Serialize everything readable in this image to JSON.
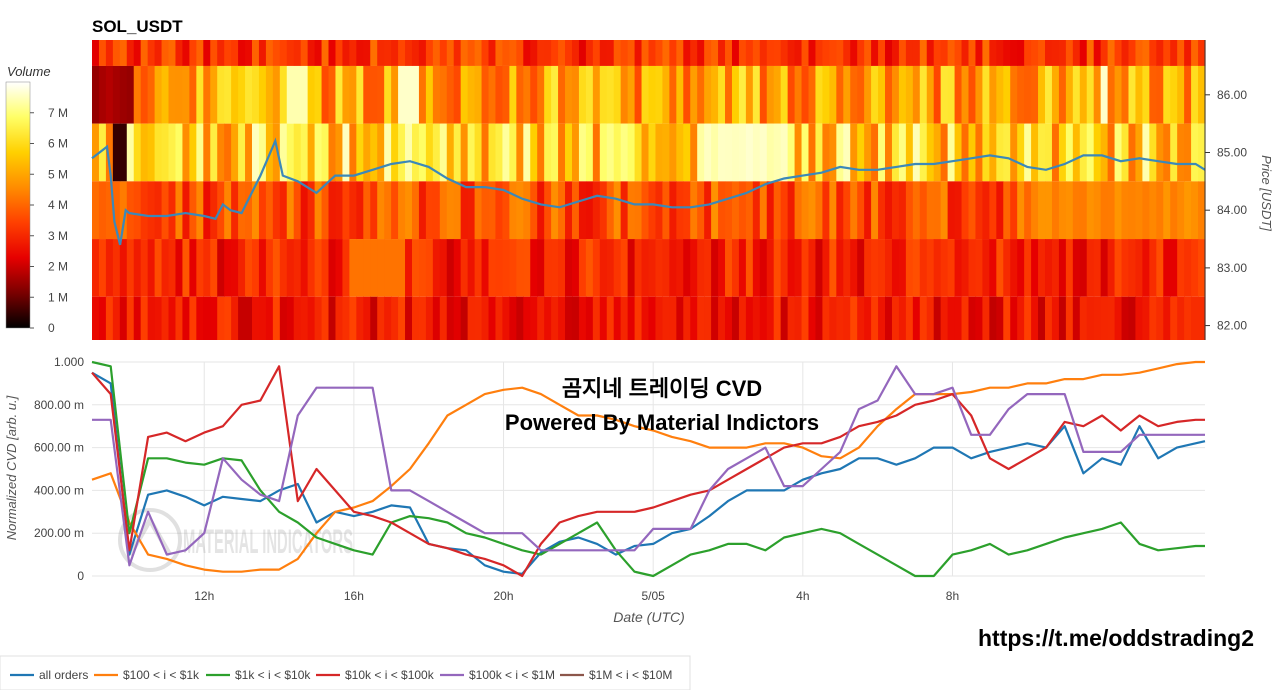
{
  "colors": {
    "heat_scale": [
      "#000000",
      "#7a0000",
      "#e60000",
      "#ff4000",
      "#ff8c00",
      "#ffd000",
      "#ffff66",
      "#ffffff"
    ],
    "price_line": "#3b88b9",
    "grid": "#e6e6e6"
  },
  "overlay": {
    "watermark": "MATERIAL INDICATORS",
    "cvd_title": "곰지네 트레이딩 CVD",
    "cvd_subtitle": "Powered By Material Indictors",
    "telegram_link": "https://t.me/oddstrading2"
  },
  "chart_data": [
    {
      "type": "heatmap",
      "title": "SOL_USDT",
      "colorbar": {
        "title": "Volume",
        "range": [
          0,
          8000000
        ],
        "ticks": [
          "0",
          "1 M",
          "2 M",
          "3 M",
          "4 M",
          "5 M",
          "6 M",
          "7 M"
        ],
        "tick_values": [
          0,
          1000000,
          2000000,
          3000000,
          4000000,
          5000000,
          6000000,
          7000000
        ]
      },
      "ylabel": "Price [USDT]",
      "ylim": [
        81.75,
        86.95
      ],
      "y_ticks": [
        "82.00",
        "83.00",
        "84.00",
        "85.00",
        "86.00"
      ],
      "y_tick_values": [
        82,
        83,
        84,
        85,
        86
      ],
      "price_levels": [
        86.7,
        86.0,
        85.0,
        84.0,
        83.0,
        82.0
      ],
      "level_volumes_typical": [
        3200000,
        5000000,
        5800000,
        3600000,
        2900000,
        2700000
      ],
      "price_series": {
        "name": "Price",
        "t": [
          0,
          0.2,
          0.4,
          0.5,
          0.6,
          0.75,
          0.9,
          1,
          1.5,
          2,
          2.5,
          3,
          3.3,
          3.5,
          3.7,
          4,
          4.5,
          4.9,
          5.1,
          5.5,
          6,
          6.5,
          7,
          7.5,
          8,
          8.5,
          9,
          9.5,
          10,
          10.5,
          11,
          11.5,
          12,
          12.5,
          13,
          13.5,
          14,
          14.5,
          15,
          15.5,
          16,
          16.5,
          17,
          17.5,
          18,
          18.5,
          19,
          19.5,
          20,
          20.5,
          21,
          21.5,
          22,
          22.5,
          23,
          23.5,
          24,
          24.5,
          25,
          25.5,
          26,
          26.5,
          27,
          27.5,
          28,
          28.5,
          29,
          29.5,
          29.75
        ],
        "price": [
          84.9,
          85.0,
          85.1,
          84.6,
          83.8,
          83.4,
          84.0,
          83.95,
          83.9,
          83.9,
          83.95,
          83.9,
          83.85,
          84.1,
          84.0,
          83.95,
          84.6,
          85.2,
          84.6,
          84.5,
          84.3,
          84.6,
          84.6,
          84.7,
          84.8,
          84.85,
          84.75,
          84.55,
          84.4,
          84.4,
          84.35,
          84.2,
          84.1,
          84.05,
          84.15,
          84.25,
          84.2,
          84.1,
          84.1,
          84.05,
          84.05,
          84.1,
          84.2,
          84.3,
          84.45,
          84.55,
          84.6,
          84.65,
          84.75,
          84.7,
          84.7,
          84.75,
          84.8,
          84.8,
          84.85,
          84.9,
          84.95,
          84.9,
          84.75,
          84.7,
          84.8,
          84.95,
          84.95,
          84.85,
          84.9,
          84.85,
          84.8,
          84.8,
          84.7
        ]
      }
    },
    {
      "type": "line",
      "xlabel": "Date (UTC)",
      "ylabel": "Normalized CVD [arb. u.]",
      "ylim": [
        0,
        1.0
      ],
      "y_ticks": [
        "0",
        "200.00 m",
        "400.00 m",
        "600.00 m",
        "800.00 m",
        "1.000"
      ],
      "y_tick_values": [
        0,
        0.2,
        0.4,
        0.6,
        0.8,
        1.0
      ],
      "x_range_hours": [
        0,
        29.75
      ],
      "x_ticks": [
        "12h",
        "16h",
        "20h",
        "5/05",
        "4h",
        "8h"
      ],
      "x_tick_hours": [
        3,
        7,
        11,
        15,
        19,
        23
      ],
      "grid": true,
      "legend_position": "bottom-left",
      "series": [
        {
          "name": "all orders",
          "color": "#1f77b4",
          "t": [
            0,
            0.5,
            1,
            1.5,
            2,
            2.5,
            3,
            3.5,
            4,
            4.5,
            5,
            5.5,
            6,
            6.5,
            7,
            7.5,
            8,
            8.5,
            9,
            9.5,
            10,
            10.5,
            11,
            11.5,
            12,
            12.5,
            13,
            13.5,
            14,
            14.5,
            15,
            15.5,
            16,
            16.5,
            17,
            17.5,
            18,
            18.5,
            19,
            19.5,
            20,
            20.5,
            21,
            21.5,
            22,
            22.5,
            23,
            23.5,
            24,
            24.5,
            25,
            25.5,
            26,
            26.5,
            27,
            27.5,
            28,
            28.5,
            29,
            29.5,
            29.75
          ],
          "values": [
            0.95,
            0.9,
            0.1,
            0.38,
            0.4,
            0.37,
            0.33,
            0.37,
            0.36,
            0.35,
            0.4,
            0.43,
            0.25,
            0.3,
            0.28,
            0.3,
            0.33,
            0.32,
            0.15,
            0.13,
            0.12,
            0.05,
            0.02,
            0.01,
            0.11,
            0.16,
            0.18,
            0.15,
            0.1,
            0.14,
            0.15,
            0.2,
            0.22,
            0.28,
            0.35,
            0.4,
            0.4,
            0.4,
            0.45,
            0.48,
            0.5,
            0.55,
            0.55,
            0.52,
            0.55,
            0.6,
            0.6,
            0.55,
            0.58,
            0.6,
            0.62,
            0.6,
            0.7,
            0.48,
            0.55,
            0.52,
            0.7,
            0.55,
            0.6,
            0.62,
            0.63
          ]
        },
        {
          "name": "$100 < i < $1k",
          "color": "#ff7f0e",
          "t": [
            0,
            0.5,
            1,
            1.5,
            2,
            2.5,
            3,
            3.5,
            4,
            4.5,
            5,
            5.5,
            6,
            6.5,
            7,
            7.5,
            8,
            8.5,
            9,
            9.5,
            10,
            10.5,
            11,
            11.5,
            12,
            12.5,
            13,
            13.5,
            14,
            14.5,
            15,
            15.5,
            16,
            16.5,
            17,
            17.5,
            18,
            18.5,
            19,
            19.5,
            20,
            20.5,
            21,
            21.5,
            22,
            22.5,
            23,
            23.5,
            24,
            24.5,
            25,
            25.5,
            26,
            26.5,
            27,
            27.5,
            28,
            28.5,
            29,
            29.5,
            29.75
          ],
          "values": [
            0.45,
            0.48,
            0.25,
            0.1,
            0.08,
            0.05,
            0.03,
            0.02,
            0.02,
            0.03,
            0.03,
            0.08,
            0.2,
            0.3,
            0.32,
            0.35,
            0.42,
            0.5,
            0.62,
            0.75,
            0.8,
            0.85,
            0.87,
            0.88,
            0.85,
            0.8,
            0.75,
            0.75,
            0.73,
            0.7,
            0.68,
            0.65,
            0.63,
            0.6,
            0.6,
            0.6,
            0.62,
            0.62,
            0.6,
            0.56,
            0.55,
            0.6,
            0.7,
            0.78,
            0.85,
            0.85,
            0.85,
            0.86,
            0.88,
            0.88,
            0.9,
            0.9,
            0.92,
            0.92,
            0.94,
            0.94,
            0.95,
            0.97,
            0.99,
            1.0,
            1.0
          ]
        },
        {
          "name": "$1k < i < $10k",
          "color": "#2ca02c",
          "t": [
            0,
            0.5,
            1,
            1.5,
            2,
            2.5,
            3,
            3.5,
            4,
            4.5,
            5,
            5.5,
            6,
            6.5,
            7,
            7.5,
            8,
            8.5,
            9,
            9.5,
            10,
            10.5,
            11,
            11.5,
            12,
            12.5,
            13,
            13.5,
            14,
            14.5,
            15,
            15.5,
            16,
            16.5,
            17,
            17.5,
            18,
            18.5,
            19,
            19.5,
            20,
            20.5,
            21,
            21.5,
            22,
            22.5,
            23,
            23.5,
            24,
            24.5,
            25,
            25.5,
            26,
            26.5,
            27,
            27.5,
            28,
            28.5,
            29,
            29.5,
            29.75
          ],
          "values": [
            1.0,
            0.98,
            0.2,
            0.55,
            0.55,
            0.53,
            0.52,
            0.55,
            0.54,
            0.4,
            0.3,
            0.25,
            0.18,
            0.15,
            0.12,
            0.1,
            0.25,
            0.28,
            0.27,
            0.25,
            0.2,
            0.18,
            0.15,
            0.12,
            0.1,
            0.15,
            0.2,
            0.25,
            0.12,
            0.02,
            0.0,
            0.05,
            0.1,
            0.12,
            0.15,
            0.15,
            0.12,
            0.18,
            0.2,
            0.22,
            0.2,
            0.15,
            0.1,
            0.05,
            0.0,
            0.0,
            0.1,
            0.12,
            0.15,
            0.1,
            0.12,
            0.15,
            0.18,
            0.2,
            0.22,
            0.25,
            0.15,
            0.12,
            0.13,
            0.14,
            0.14
          ]
        },
        {
          "name": "$10k < i < $100k",
          "color": "#d62728",
          "t": [
            0,
            0.5,
            1,
            1.5,
            2,
            2.5,
            3,
            3.5,
            4,
            4.5,
            5,
            5.5,
            6,
            6.5,
            7,
            7.5,
            8,
            8.5,
            9,
            9.5,
            10,
            10.5,
            11,
            11.5,
            12,
            12.5,
            13,
            13.5,
            14,
            14.5,
            15,
            15.5,
            16,
            16.5,
            17,
            17.5,
            18,
            18.5,
            19,
            19.5,
            20,
            20.5,
            21,
            21.5,
            22,
            22.5,
            23,
            23.5,
            24,
            24.5,
            25,
            25.5,
            26,
            26.5,
            27,
            27.5,
            28,
            28.5,
            29,
            29.5,
            29.75
          ],
          "values": [
            0.95,
            0.85,
            0.12,
            0.65,
            0.67,
            0.63,
            0.67,
            0.7,
            0.8,
            0.82,
            0.98,
            0.35,
            0.5,
            0.4,
            0.3,
            0.28,
            0.25,
            0.2,
            0.15,
            0.13,
            0.1,
            0.08,
            0.05,
            0.0,
            0.15,
            0.25,
            0.28,
            0.3,
            0.3,
            0.3,
            0.32,
            0.35,
            0.38,
            0.4,
            0.45,
            0.5,
            0.55,
            0.6,
            0.62,
            0.62,
            0.65,
            0.7,
            0.72,
            0.75,
            0.8,
            0.82,
            0.85,
            0.75,
            0.55,
            0.5,
            0.55,
            0.6,
            0.72,
            0.7,
            0.75,
            0.68,
            0.75,
            0.7,
            0.72,
            0.73,
            0.73
          ]
        },
        {
          "name": "$100k < i < $1M",
          "color": "#9467bd",
          "t": [
            0,
            0.5,
            1,
            1.5,
            2,
            2.5,
            3,
            3.5,
            4,
            4.5,
            5,
            5.5,
            6,
            6.5,
            7,
            7.5,
            8,
            8.5,
            9,
            9.5,
            10,
            10.5,
            11,
            11.5,
            12,
            12.5,
            13,
            13.5,
            14,
            14.5,
            15,
            15.5,
            16,
            16.5,
            17,
            17.5,
            18,
            18.5,
            19,
            19.5,
            20,
            20.5,
            21,
            21.5,
            22,
            22.5,
            23,
            23.5,
            24,
            24.5,
            25,
            25.5,
            26,
            26.5,
            27,
            27.5,
            28,
            28.5,
            29,
            29.5,
            29.75
          ],
          "values": [
            0.73,
            0.73,
            0.05,
            0.3,
            0.1,
            0.12,
            0.2,
            0.55,
            0.45,
            0.38,
            0.35,
            0.75,
            0.88,
            0.88,
            0.88,
            0.88,
            0.4,
            0.4,
            0.35,
            0.3,
            0.25,
            0.2,
            0.2,
            0.2,
            0.12,
            0.12,
            0.12,
            0.12,
            0.12,
            0.12,
            0.22,
            0.22,
            0.22,
            0.4,
            0.5,
            0.55,
            0.6,
            0.42,
            0.42,
            0.5,
            0.58,
            0.78,
            0.82,
            0.98,
            0.85,
            0.85,
            0.88,
            0.66,
            0.66,
            0.78,
            0.85,
            0.85,
            0.85,
            0.58,
            0.58,
            0.58,
            0.66,
            0.66,
            0.66,
            0.66,
            0.66
          ]
        },
        {
          "name": "$1M < i < $10M",
          "color": "#8c564b",
          "t": [],
          "values": []
        }
      ]
    }
  ]
}
